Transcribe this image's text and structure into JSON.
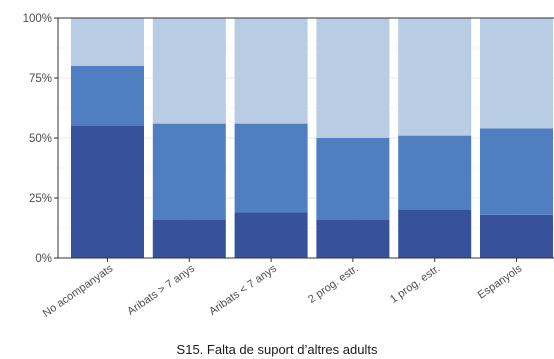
{
  "chart_data": {
    "type": "bar",
    "stacked": true,
    "percent": true,
    "categories": [
      "No acompanyats",
      "Aribats > 7 anys",
      "Aribats < 7 anys",
      "2 prog. estr.",
      "1 prog. estr.",
      "Espanyols"
    ],
    "series": [
      {
        "values": [
          55,
          16,
          19,
          16,
          20,
          18
        ],
        "color": "#36529a"
      },
      {
        "values": [
          25,
          40,
          37,
          34,
          31,
          36
        ],
        "color": "#4f7fc0"
      },
      {
        "values": [
          20,
          44,
          44,
          50,
          49,
          46
        ],
        "color": "#b8cce4"
      }
    ],
    "xlabel": "S15. Falta de suport d’altres adults",
    "ylabel": "",
    "ylim": [
      0,
      100
    ],
    "yticks": [
      0,
      25,
      50,
      75,
      100
    ],
    "ytick_labels": [
      "0%",
      "25%",
      "50%",
      "75%",
      "100%"
    ],
    "grid": true,
    "legend": "none",
    "panel_border_color": "#333333",
    "grid_color": "#ebebeb"
  }
}
